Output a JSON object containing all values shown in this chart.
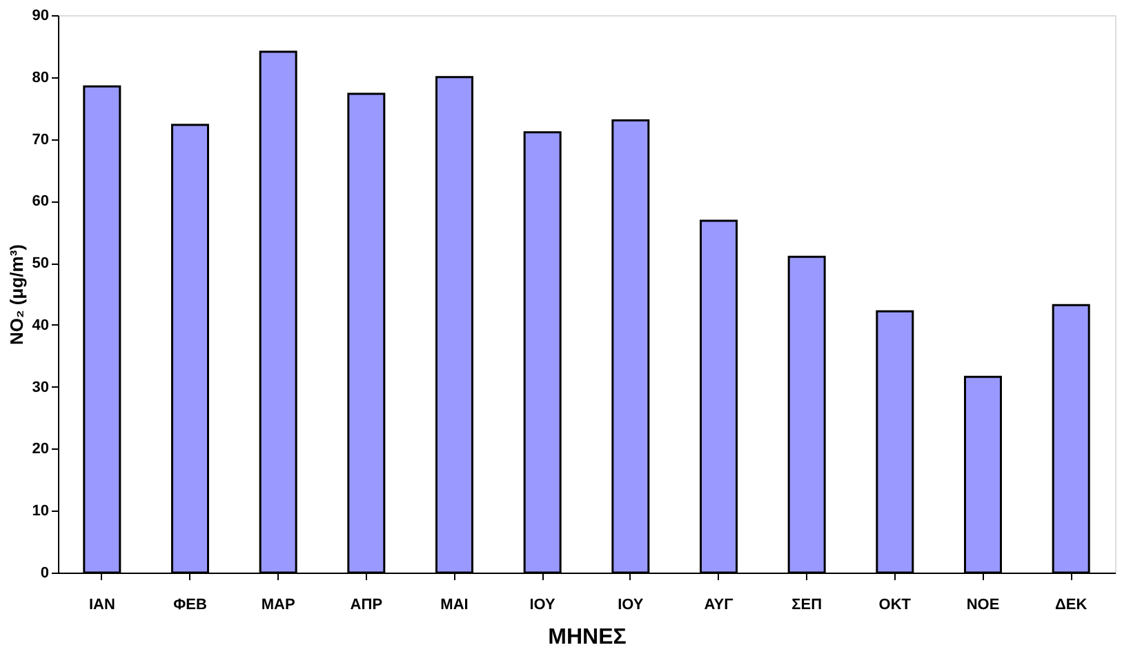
{
  "chart_data": {
    "type": "bar",
    "xlabel": "ΜΗΝΕΣ",
    "ylabel": "NO₂ (μg/m³)",
    "categories": [
      "ΙΑΝ",
      "ΦΕΒ",
      "ΜΑΡ",
      "ΑΠΡ",
      "ΜΑΙ",
      "ΙΟΥ",
      "ΙΟΥ",
      "ΑΥΓ",
      "ΣΕΠ",
      "ΟΚΤ",
      "ΝΟΕ",
      "ΔΕΚ"
    ],
    "values": [
      78.5,
      72.3,
      84.1,
      77.3,
      80.0,
      71.1,
      73.0,
      56.8,
      51.0,
      42.2,
      31.6,
      43.2
    ],
    "color": "#9999ff",
    "ylim": [
      0,
      90
    ],
    "yticks": [
      0,
      10,
      20,
      30,
      40,
      50,
      60,
      70,
      80,
      90
    ],
    "grid": false
  }
}
